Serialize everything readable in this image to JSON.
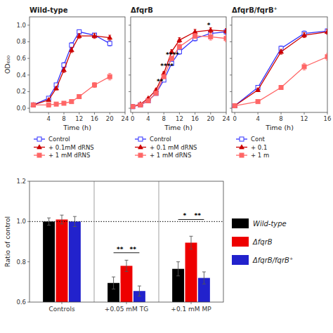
{
  "chart_data": [
    {
      "type": "line",
      "title": "Wild-type",
      "x_label": "Time (h)",
      "y_label": "OD₆₀₀",
      "xlim": [
        -1,
        24
      ],
      "xticks": [
        4,
        8,
        12,
        16,
        20,
        24
      ],
      "ylim": [
        -0.05,
        1.1
      ],
      "yticks": [
        {
          "value": 0,
          "label": "0.0"
        },
        0.2,
        0.4,
        0.6,
        0.8,
        {
          "value": 1,
          "label": "1.0"
        }
      ],
      "grid": false,
      "legend": "bottom",
      "series": [
        {
          "name": "Control",
          "color": "#3333ff",
          "marker": "open-square",
          "x": [
            0,
            4,
            6,
            8,
            10,
            12,
            16,
            20
          ],
          "values": [
            0.04,
            0.12,
            0.28,
            0.52,
            0.76,
            0.92,
            0.88,
            0.78
          ],
          "errors": [
            0.005,
            0.01,
            0.02,
            0.03,
            0.03,
            0.02,
            0.02,
            0.03
          ]
        },
        {
          "name": "+ 0.1mM dRNS",
          "color": "#cc0000",
          "marker": "triangle",
          "x": [
            0,
            4,
            6,
            8,
            10,
            12,
            16,
            20
          ],
          "values": [
            0.04,
            0.1,
            0.24,
            0.46,
            0.7,
            0.87,
            0.87,
            0.85
          ],
          "errors": [
            0.005,
            0.01,
            0.02,
            0.03,
            0.03,
            0.03,
            0.03,
            0.03
          ]
        },
        {
          "name": "+ 1 mM dRNS",
          "color": "#ff6666",
          "marker": "square",
          "x": [
            0,
            4,
            6,
            8,
            10,
            12,
            16,
            20
          ],
          "values": [
            0.04,
            0.04,
            0.05,
            0.06,
            0.08,
            0.14,
            0.28,
            0.38
          ],
          "errors": [
            0.005,
            0.01,
            0.01,
            0.01,
            0.01,
            0.02,
            0.03,
            0.04
          ]
        }
      ]
    },
    {
      "type": "line",
      "title": "ΔfqrB",
      "x_label": "Time (h)",
      "xlim": [
        -0.5,
        24
      ],
      "xticks": [
        0,
        4,
        8,
        12,
        16,
        20,
        24
      ],
      "ylim": [
        -0.05,
        1.1
      ],
      "yticks": [
        {
          "value": 0,
          "label": "0.0"
        },
        0.2,
        0.4,
        0.6,
        0.8,
        {
          "value": 1,
          "label": "1.0"
        }
      ],
      "tick_labels": "x",
      "grid": false,
      "legend": "bottom",
      "series": [
        {
          "name": "Control",
          "color": "#3333ff",
          "marker": "open-square",
          "x": [
            0,
            2,
            4,
            6,
            8,
            10,
            12,
            16,
            20,
            24
          ],
          "values": [
            0.02,
            0.04,
            0.09,
            0.18,
            0.34,
            0.54,
            0.68,
            0.84,
            0.9,
            0.92
          ],
          "errors": [
            0.003,
            0.005,
            0.01,
            0.015,
            0.02,
            0.025,
            0.03,
            0.03,
            0.03,
            0.03
          ]
        },
        {
          "name": "+ 0.1 mM dRNS",
          "color": "#cc0000",
          "marker": "triangle",
          "x": [
            0,
            2,
            4,
            6,
            8,
            10,
            12,
            16,
            20,
            24
          ],
          "values": [
            0.02,
            0.05,
            0.12,
            0.22,
            0.42,
            0.68,
            0.82,
            0.92,
            0.94,
            0.93
          ],
          "errors": [
            0.003,
            0.005,
            0.01,
            0.015,
            0.02,
            0.025,
            0.03,
            0.03,
            0.03,
            0.03
          ]
        },
        {
          "name": "+ 1 mM dRNS",
          "color": "#ff6666",
          "marker": "square",
          "x": [
            0,
            2,
            4,
            6,
            8,
            10,
            12,
            16,
            20,
            24
          ],
          "values": [
            0.02,
            0.04,
            0.09,
            0.18,
            0.38,
            0.6,
            0.74,
            0.87,
            0.86,
            0.84
          ],
          "errors": [
            0.003,
            0.005,
            0.01,
            0.015,
            0.02,
            0.025,
            0.03,
            0.03,
            0.04,
            0.04
          ]
        }
      ],
      "annotations": [
        {
          "text": "**",
          "x": 7.0,
          "y": 0.3
        },
        {
          "text": "****",
          "x": 8.8,
          "y": 0.48
        },
        {
          "text": "****",
          "x": 10.2,
          "y": 0.62
        },
        {
          "text": "*",
          "x": 19.5,
          "y": 0.97
        }
      ]
    },
    {
      "type": "line",
      "title": "ΔfqrB/fqrB⁺",
      "x_label": "Time (h)",
      "xlim": [
        -0.5,
        16
      ],
      "xticks": [
        0,
        4,
        8,
        12,
        16
      ],
      "ylim": [
        -0.05,
        1.1
      ],
      "yticks": [
        {
          "value": 0,
          "label": "0.0"
        },
        0.2,
        0.4,
        0.6,
        0.8,
        {
          "value": 1,
          "label": "1.0"
        }
      ],
      "tick_labels": "x",
      "grid": false,
      "legend": "bottom",
      "series": [
        {
          "name": "Cont",
          "color": "#3333ff",
          "marker": "open-square",
          "x": [
            0,
            4,
            8,
            12,
            16
          ],
          "values": [
            0.03,
            0.25,
            0.72,
            0.9,
            0.93
          ],
          "errors": [
            0.005,
            0.02,
            0.03,
            0.03,
            0.02
          ]
        },
        {
          "name": "+ 0.1",
          "color": "#cc0000",
          "marker": "triangle",
          "x": [
            0,
            4,
            8,
            12,
            16
          ],
          "values": [
            0.03,
            0.22,
            0.68,
            0.88,
            0.92
          ],
          "errors": [
            0.005,
            0.02,
            0.03,
            0.03,
            0.03
          ]
        },
        {
          "name": "+ 1 m",
          "color": "#ff6666",
          "marker": "square",
          "x": [
            0,
            4,
            8,
            12,
            16
          ],
          "values": [
            0.03,
            0.08,
            0.25,
            0.5,
            0.62
          ],
          "errors": [
            0.005,
            0.015,
            0.025,
            0.04,
            0.04
          ]
        }
      ]
    },
    {
      "type": "bar",
      "y_label": "Ratio of control",
      "categories": [
        "Controls",
        "+0.05 mM TG",
        "+0.1 mM MP"
      ],
      "ylim": [
        0.6,
        1.2
      ],
      "yticks": [
        0.6,
        0.8,
        {
          "value": 1,
          "label": "1.0"
        },
        1.2
      ],
      "grid": false,
      "legend": "right",
      "series": [
        {
          "name": "Wild-type",
          "color": "#000000",
          "values": [
            1.0,
            0.695,
            0.765
          ],
          "errors": [
            0.018,
            0.03,
            0.035
          ]
        },
        {
          "name": "ΔfqrB",
          "color": "#ee0000",
          "values": [
            1.01,
            0.78,
            0.895
          ],
          "errors": [
            0.022,
            0.028,
            0.032
          ]
        },
        {
          "name": "ΔfqrB/fqrB⁺",
          "color": "#2222cc",
          "values": [
            1.0,
            0.655,
            0.72
          ],
          "errors": [
            0.025,
            0.025,
            0.03
          ]
        }
      ],
      "reference_lines": [
        {
          "y": 1.0,
          "line_style": "dotted"
        }
      ],
      "annotations": [
        {
          "text": "**",
          "category": "+0.05 mM TG",
          "series": [
            "Wild-type",
            "ΔfqrB"
          ],
          "y": 0.845
        },
        {
          "text": "**",
          "category": "+0.05 mM TG",
          "series": [
            "ΔfqrB",
            "ΔfqrB/fqrB⁺"
          ],
          "y": 0.845
        },
        {
          "text": "*",
          "category": "+0.1 mM MP",
          "series": [
            "Wild-type",
            "ΔfqrB"
          ],
          "y": 1.01
        },
        {
          "text": "**",
          "category": "+0.1 mM MP",
          "series": [
            "ΔfqrB",
            "ΔfqrB/fqrB⁺"
          ],
          "y": 1.01
        }
      ]
    }
  ]
}
